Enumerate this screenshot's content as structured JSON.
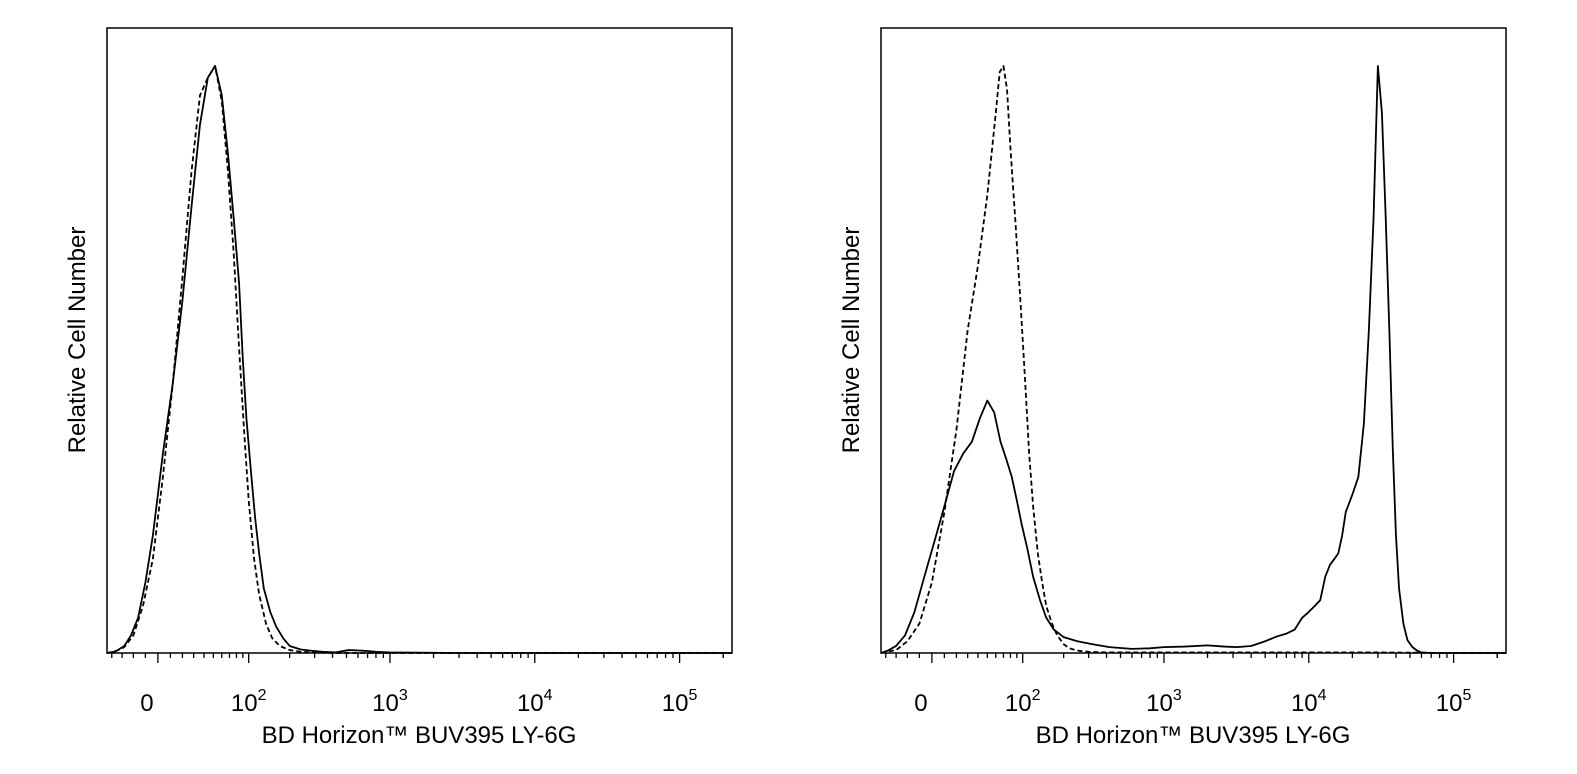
{
  "chart_data": [
    {
      "type": "line",
      "title": "",
      "xlabel": "BD Horizon™ BUV395 LY-6G",
      "ylabel": "Relative Cell Number",
      "x_scale": "biexponential (linear near zero, logarithmic above)",
      "xlim": [
        -45,
        230000
      ],
      "ylim": [
        0,
        1.0
      ],
      "x_tick_labels": [
        {
          "base": "0",
          "exp": "",
          "value": 0
        },
        {
          "base": "10",
          "exp": "2",
          "value": 100
        },
        {
          "base": "10",
          "exp": "3",
          "value": 1000
        },
        {
          "base": "10",
          "exp": "4",
          "value": 10000
        },
        {
          "base": "10",
          "exp": "5",
          "value": 100000
        }
      ],
      "legend": "none",
      "grid": false,
      "series": [
        {
          "style": "solid",
          "color": "#000000",
          "x": [
            -45,
            -40,
            -35,
            -28,
            -22,
            -16,
            -10,
            -4,
            4,
            12,
            20,
            28,
            36,
            44,
            52,
            60,
            68,
            76,
            84,
            90,
            96,
            104,
            112,
            120,
            130,
            145,
            160,
            180,
            200,
            240,
            280,
            340,
            420,
            520,
            640,
            800,
            1000,
            3000,
            10000,
            30000,
            100000,
            230000
          ],
          "y": [
            0,
            0.001,
            0.004,
            0.012,
            0.03,
            0.06,
            0.12,
            0.2,
            0.34,
            0.46,
            0.6,
            0.76,
            0.9,
            0.98,
            1.0,
            0.95,
            0.85,
            0.74,
            0.63,
            0.5,
            0.4,
            0.31,
            0.23,
            0.17,
            0.11,
            0.07,
            0.045,
            0.025,
            0.012,
            0.006,
            0.004,
            0.002,
            0.001,
            0.005,
            0.004,
            0.002,
            0.001,
            0,
            0,
            0,
            0,
            0
          ]
        },
        {
          "style": "dashed",
          "color": "#000000",
          "x": [
            -45,
            -36,
            -28,
            -20,
            -12,
            -4,
            4,
            12,
            20,
            28,
            36,
            44,
            52,
            60,
            68,
            76,
            84,
            92,
            100,
            110,
            120,
            135,
            150,
            170,
            200,
            240,
            300,
            400,
            1000,
            10000,
            100000,
            230000
          ],
          "y": [
            0,
            0.003,
            0.01,
            0.03,
            0.08,
            0.16,
            0.3,
            0.46,
            0.64,
            0.82,
            0.95,
            0.98,
            1.0,
            0.94,
            0.82,
            0.68,
            0.52,
            0.38,
            0.26,
            0.16,
            0.1,
            0.05,
            0.025,
            0.012,
            0.005,
            0.002,
            0.001,
            0,
            0,
            0,
            0,
            0
          ]
        }
      ]
    },
    {
      "type": "line",
      "title": "",
      "xlabel": "BD Horizon™ BUV395 LY-6G",
      "ylabel": "Relative Cell Number",
      "x_scale": "biexponential (linear near zero, logarithmic above)",
      "xlim": [
        -45,
        230000
      ],
      "ylim": [
        0,
        1.0
      ],
      "x_tick_labels": [
        {
          "base": "0",
          "exp": "",
          "value": 0
        },
        {
          "base": "10",
          "exp": "2",
          "value": 100
        },
        {
          "base": "10",
          "exp": "3",
          "value": 1000
        },
        {
          "base": "10",
          "exp": "4",
          "value": 10000
        },
        {
          "base": "10",
          "exp": "5",
          "value": 100000
        }
      ],
      "legend": "none",
      "grid": false,
      "series": [
        {
          "style": "solid",
          "color": "#000000",
          "x": [
            -45,
            -38,
            -30,
            -22,
            -14,
            -6,
            2,
            10,
            18,
            26,
            34,
            42,
            50,
            58,
            66,
            74,
            82,
            90,
            98,
            108,
            120,
            135,
            150,
            170,
            200,
            250,
            320,
            420,
            600,
            800,
            1000,
            1400,
            2000,
            2600,
            3200,
            4000,
            5000,
            6000,
            7000,
            8000,
            9000,
            10000,
            11000,
            12000,
            13000,
            14000,
            15000,
            16000,
            17000,
            18000,
            20000,
            22000,
            24000,
            26000,
            28000,
            30000,
            32000,
            34000,
            36000,
            38000,
            40000,
            42000,
            45000,
            48000,
            52000,
            56000,
            60000,
            70000,
            100000,
            230000
          ],
          "y": [
            0,
            0.004,
            0.012,
            0.03,
            0.07,
            0.13,
            0.19,
            0.25,
            0.31,
            0.34,
            0.36,
            0.4,
            0.43,
            0.41,
            0.36,
            0.33,
            0.3,
            0.26,
            0.22,
            0.18,
            0.13,
            0.09,
            0.06,
            0.04,
            0.027,
            0.02,
            0.015,
            0.01,
            0.007,
            0.008,
            0.01,
            0.011,
            0.013,
            0.011,
            0.01,
            0.012,
            0.02,
            0.028,
            0.033,
            0.04,
            0.06,
            0.07,
            0.08,
            0.09,
            0.13,
            0.15,
            0.16,
            0.17,
            0.2,
            0.24,
            0.27,
            0.3,
            0.39,
            0.55,
            0.74,
            1.0,
            0.92,
            0.74,
            0.55,
            0.35,
            0.2,
            0.11,
            0.05,
            0.022,
            0.01,
            0.004,
            0.001,
            0,
            0,
            0
          ]
        },
        {
          "style": "dashed",
          "color": "#000000",
          "x": [
            -45,
            -30,
            -20,
            -10,
            0,
            10,
            20,
            30,
            40,
            50,
            60,
            65,
            70,
            75,
            80,
            88,
            96,
            104,
            112,
            120,
            130,
            140,
            150,
            165,
            180,
            200,
            220,
            250,
            300,
            400,
            600,
            1000,
            3000,
            10000,
            30000,
            100000,
            230000
          ],
          "y": [
            0,
            0.005,
            0.02,
            0.05,
            0.12,
            0.24,
            0.38,
            0.55,
            0.66,
            0.78,
            0.92,
            0.99,
            1.0,
            0.96,
            0.86,
            0.73,
            0.6,
            0.47,
            0.34,
            0.25,
            0.17,
            0.12,
            0.08,
            0.05,
            0.03,
            0.015,
            0.008,
            0.004,
            0.002,
            0.001,
            0.001,
            0.001,
            0.001,
            0.001,
            0.001,
            0,
            0
          ]
        }
      ]
    }
  ]
}
